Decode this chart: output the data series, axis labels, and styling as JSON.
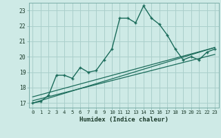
{
  "xlabel": "Humidex (Indice chaleur)",
  "background_color": "#ceeae6",
  "grid_color": "#aacfcb",
  "line_color": "#1a6b5a",
  "x_range": [
    -0.5,
    23.5
  ],
  "y_range": [
    16.7,
    23.5
  ],
  "yticks": [
    17,
    18,
    19,
    20,
    21,
    22,
    23
  ],
  "xticks": [
    0,
    1,
    2,
    3,
    4,
    5,
    6,
    7,
    8,
    9,
    10,
    11,
    12,
    13,
    14,
    15,
    16,
    17,
    18,
    19,
    20,
    21,
    22,
    23
  ],
  "main_series_x": [
    0,
    1,
    2,
    3,
    4,
    5,
    6,
    7,
    8,
    9,
    10,
    11,
    12,
    13,
    14,
    15,
    16,
    17,
    18,
    19,
    20,
    21,
    22,
    23
  ],
  "main_series_y": [
    17.0,
    17.1,
    17.5,
    18.8,
    18.8,
    18.6,
    19.3,
    19.0,
    19.1,
    19.8,
    20.5,
    22.5,
    22.5,
    22.2,
    23.3,
    22.5,
    22.1,
    21.4,
    20.5,
    19.8,
    20.0,
    19.8,
    20.3,
    20.5
  ],
  "line1_x": [
    0,
    23
  ],
  "line1_y": [
    17.0,
    20.6
  ],
  "line2_x": [
    0,
    23
  ],
  "line2_y": [
    17.15,
    20.15
  ],
  "line3_x": [
    0,
    23
  ],
  "line3_y": [
    17.4,
    20.6
  ]
}
